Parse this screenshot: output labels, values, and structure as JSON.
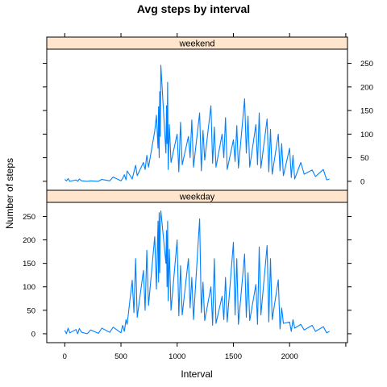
{
  "chart_data": {
    "type": "line",
    "layout": "lattice-2-panels-stacked",
    "title": "Avg steps by interval",
    "xlabel": "Interval",
    "ylabel": "Number of steps",
    "xlim": [
      -160,
      2515
    ],
    "ylim": [
      -19,
      280
    ],
    "x_ticks": [
      0,
      500,
      1000,
      1500,
      2000
    ],
    "y_ticks": [
      0,
      50,
      100,
      150,
      200,
      250
    ],
    "grid": false,
    "strip_color": "#ffe5cc",
    "line_color": "#0080ff",
    "panels": [
      {
        "strip": "weekend",
        "series": [
          {
            "x": [
              0,
              15,
              30,
              45,
              100,
              115,
              130,
              150,
              200,
              230,
              300,
              330,
              400,
              430,
              500,
              515,
              530,
              545,
              555,
              600,
              615,
              630,
              645,
              700,
              715,
              730,
              745,
              800,
              815,
              830,
              835,
              840,
              845,
              850,
              855,
              900,
              905,
              910,
              915,
              920,
              930,
              945,
              1000,
              1015,
              1030,
              1045,
              1100,
              1115,
              1130,
              1145,
              1200,
              1215,
              1230,
              1245,
              1300,
              1315,
              1330,
              1345,
              1400,
              1415,
              1430,
              1445,
              1500,
              1515,
              1530,
              1545,
              1600,
              1615,
              1630,
              1645,
              1700,
              1715,
              1730,
              1745,
              1800,
              1815,
              1830,
              1845,
              1900,
              1915,
              1930,
              1945,
              2000,
              2015,
              2030,
              2045,
              2100,
              2130,
              2200,
              2230,
              2300,
              2330,
              2355
            ],
            "y": [
              4,
              1,
              6,
              0,
              3,
              0,
              5,
              1,
              0,
              1,
              0,
              4,
              1,
              9,
              1,
              6,
              14,
              3,
              22,
              5,
              20,
              34,
              12,
              40,
              25,
              55,
              30,
              106,
              140,
              70,
              158,
              50,
              190,
              95,
              246,
              60,
              160,
              80,
              210,
              25,
              120,
              40,
              100,
              20,
              125,
              35,
              95,
              50,
              130,
              30,
              145,
              22,
              108,
              45,
              160,
              38,
              115,
              30,
              100,
              50,
              135,
              25,
              88,
              42,
              118,
              28,
              175,
              60,
              138,
              30,
              120,
              35,
              145,
              28,
              132,
              20,
              110,
              15,
              100,
              22,
              80,
              12,
              70,
              8,
              55,
              5,
              40,
              15,
              24,
              10,
              25,
              3,
              5
            ]
          }
        ]
      },
      {
        "strip": "weekday",
        "series": [
          {
            "x": [
              0,
              15,
              30,
              45,
              100,
              115,
              130,
              150,
              200,
              230,
              300,
              330,
              400,
              430,
              500,
              515,
              530,
              545,
              555,
              600,
              615,
              630,
              645,
              700,
              715,
              730,
              745,
              800,
              815,
              830,
              835,
              840,
              845,
              850,
              855,
              900,
              905,
              910,
              915,
              920,
              930,
              945,
              1000,
              1015,
              1030,
              1045,
              1100,
              1115,
              1130,
              1145,
              1200,
              1215,
              1230,
              1245,
              1300,
              1315,
              1330,
              1345,
              1400,
              1415,
              1430,
              1445,
              1500,
              1515,
              1530,
              1545,
              1600,
              1615,
              1630,
              1645,
              1700,
              1715,
              1730,
              1745,
              1800,
              1815,
              1830,
              1845,
              1900,
              1915,
              1930,
              1945,
              2000,
              2015,
              2030,
              2045,
              2100,
              2130,
              2200,
              2230,
              2300,
              2330,
              2355
            ],
            "y": [
              7,
              0,
              12,
              2,
              9,
              0,
              11,
              3,
              0,
              8,
              1,
              12,
              3,
              14,
              2,
              18,
              5,
              30,
              20,
              114,
              45,
              160,
              35,
              135,
              50,
              178,
              60,
              207,
              95,
              240,
              110,
              258,
              130,
              235,
              262,
              150,
              220,
              100,
              240,
              70,
              180,
              50,
              200,
              38,
              145,
              40,
              160,
              55,
              120,
              30,
              245,
              45,
              110,
              28,
              100,
              18,
              160,
              22,
              80,
              30,
              120,
              25,
              195,
              40,
              160,
              20,
              170,
              35,
              130,
              28,
              105,
              20,
              185,
              40,
              188,
              25,
              160,
              30,
              115,
              10,
              55,
              22,
              25,
              5,
              30,
              12,
              20,
              8,
              18,
              5,
              15,
              2,
              5
            ]
          }
        ]
      }
    ]
  }
}
